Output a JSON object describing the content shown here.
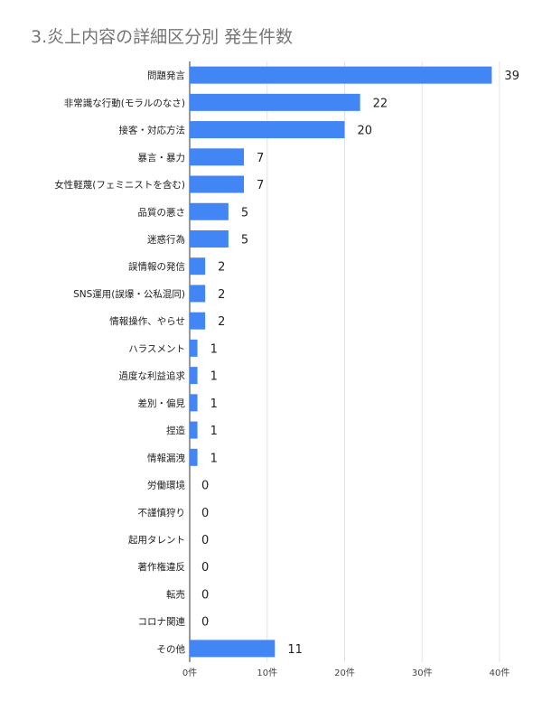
{
  "chart_data": {
    "type": "bar",
    "orientation": "horizontal",
    "title": "3.炎上内容の詳細区分別 発生件数",
    "categories": [
      "問題発言",
      "非常識な行動(モラルのなさ)",
      "接客・対応方法",
      "暴言・暴力",
      "女性軽蔑(フェミニストを含む)",
      "品質の悪さ",
      "迷惑行為",
      "誤情報の発信",
      "SNS運用(誤爆・公私混同)",
      "情報操作、やらせ",
      "ハラスメント",
      "過度な利益追求",
      "差別・偏見",
      "捏造",
      "情報漏洩",
      "労働環境",
      "不謹慎狩り",
      "起用タレント",
      "著作権違反",
      "転売",
      "コロナ関連",
      "その他"
    ],
    "values": [
      39,
      22,
      20,
      7,
      7,
      5,
      5,
      2,
      2,
      2,
      1,
      1,
      1,
      1,
      1,
      0,
      0,
      0,
      0,
      0,
      0,
      11
    ],
    "xlim": [
      0,
      40
    ],
    "xticks": [
      "0件",
      "10件",
      "20件",
      "30件",
      "40件"
    ],
    "grid": true,
    "bar_color": "#4285f4"
  }
}
